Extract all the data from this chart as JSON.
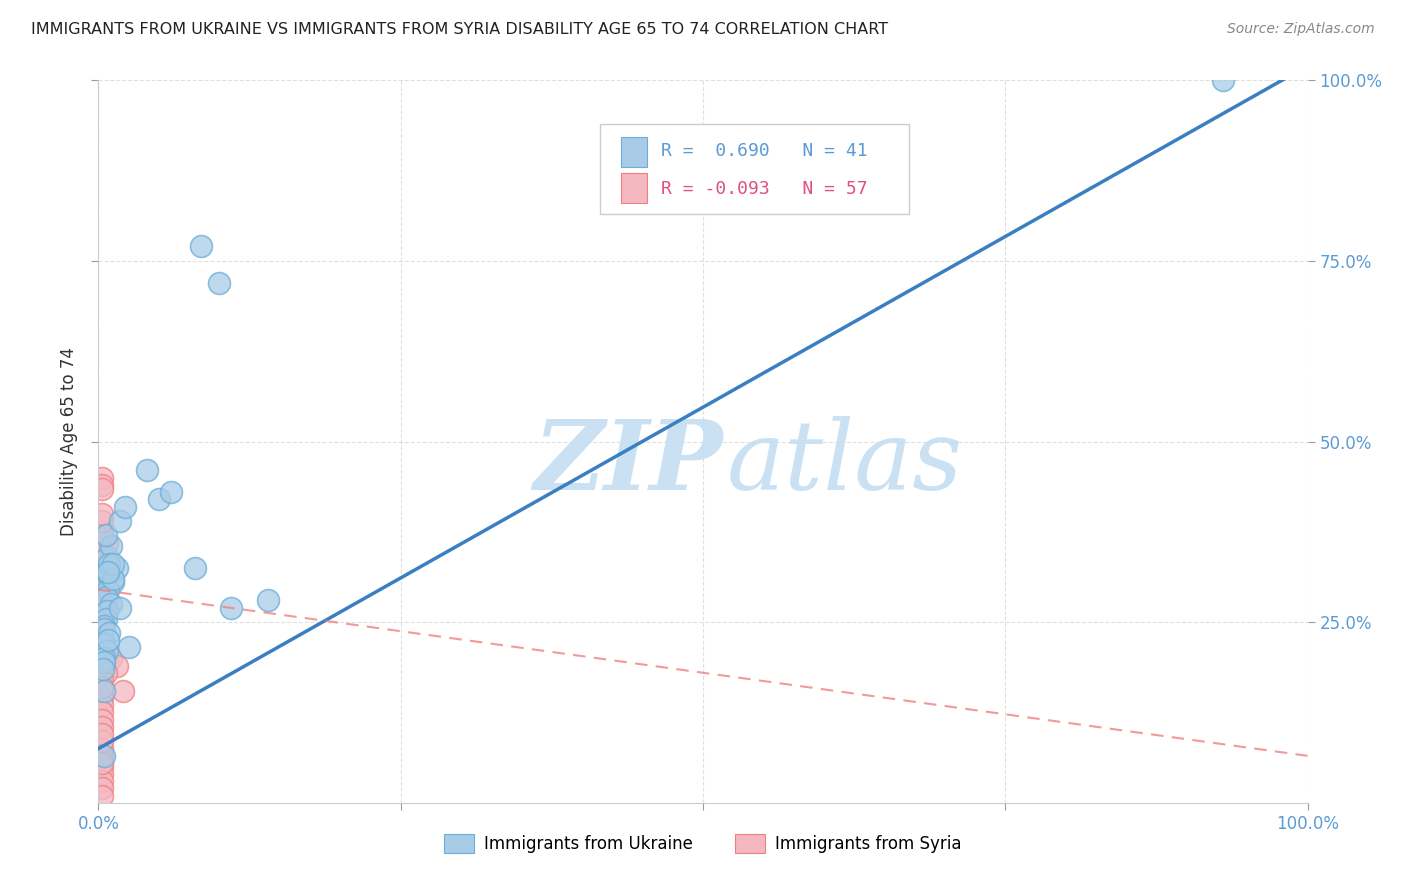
{
  "title": "IMMIGRANTS FROM UKRAINE VS IMMIGRANTS FROM SYRIA DISABILITY AGE 65 TO 74 CORRELATION CHART",
  "source": "Source: ZipAtlas.com",
  "ylabel": "Disability Age 65 to 74",
  "xlim": [
    0,
    1.0
  ],
  "ylim": [
    0,
    1.0
  ],
  "ukraine_color": "#a8cce8",
  "ukraine_edge": "#6baed6",
  "syria_color": "#f4b8c1",
  "syria_edge": "#f08080",
  "ukraine_R": 0.69,
  "ukraine_N": 41,
  "syria_R": -0.093,
  "syria_N": 57,
  "ukraine_line_color": "#3a7fc1",
  "syria_line_color": "#f08080",
  "ukraine_scatter_x": [
    0.005,
    0.007,
    0.008,
    0.012,
    0.015,
    0.007,
    0.01,
    0.006,
    0.009,
    0.008,
    0.018,
    0.022,
    0.05,
    0.06,
    0.006,
    0.01,
    0.007,
    0.006,
    0.012,
    0.005,
    0.005,
    0.009,
    0.085,
    0.1,
    0.005,
    0.007,
    0.005,
    0.008,
    0.005,
    0.004,
    0.012,
    0.018,
    0.025,
    0.11,
    0.14,
    0.005,
    0.93,
    0.008,
    0.04,
    0.08,
    0.005
  ],
  "ukraine_scatter_y": [
    0.31,
    0.32,
    0.315,
    0.305,
    0.325,
    0.34,
    0.355,
    0.37,
    0.33,
    0.295,
    0.39,
    0.41,
    0.42,
    0.43,
    0.285,
    0.275,
    0.265,
    0.255,
    0.31,
    0.245,
    0.24,
    0.235,
    0.77,
    0.72,
    0.22,
    0.21,
    0.2,
    0.225,
    0.195,
    0.185,
    0.33,
    0.27,
    0.215,
    0.27,
    0.28,
    0.155,
    1.0,
    0.32,
    0.46,
    0.325,
    0.065
  ],
  "syria_scatter_x": [
    0.003,
    0.004,
    0.003,
    0.004,
    0.003,
    0.006,
    0.003,
    0.003,
    0.004,
    0.003,
    0.007,
    0.003,
    0.003,
    0.003,
    0.006,
    0.003,
    0.003,
    0.003,
    0.004,
    0.003,
    0.003,
    0.003,
    0.003,
    0.006,
    0.01,
    0.003,
    0.015,
    0.006,
    0.003,
    0.02,
    0.003,
    0.003,
    0.003,
    0.003,
    0.003,
    0.003,
    0.003,
    0.003,
    0.003,
    0.003,
    0.003,
    0.003,
    0.003,
    0.003,
    0.003,
    0.003,
    0.003,
    0.003,
    0.003,
    0.003,
    0.003,
    0.003,
    0.003,
    0.003,
    0.003,
    0.003,
    0.003
  ],
  "syria_scatter_y": [
    0.285,
    0.3,
    0.31,
    0.32,
    0.265,
    0.275,
    0.28,
    0.33,
    0.34,
    0.35,
    0.36,
    0.37,
    0.24,
    0.23,
    0.295,
    0.25,
    0.28,
    0.26,
    0.27,
    0.32,
    0.31,
    0.3,
    0.22,
    0.21,
    0.2,
    0.205,
    0.19,
    0.18,
    0.17,
    0.155,
    0.39,
    0.4,
    0.45,
    0.44,
    0.435,
    0.325,
    0.315,
    0.305,
    0.295,
    0.285,
    0.275,
    0.145,
    0.135,
    0.125,
    0.115,
    0.16,
    0.105,
    0.065,
    0.075,
    0.085,
    0.095,
    0.05,
    0.04,
    0.03,
    0.02,
    0.01,
    0.055
  ],
  "watermark_zip": "ZIP",
  "watermark_atlas": "atlas",
  "background_color": "#ffffff",
  "grid_color": "#cccccc",
  "tick_color": "#5b9bd5",
  "ukr_line_x0": 0.0,
  "ukr_line_y0": 0.075,
  "ukr_line_x1": 1.0,
  "ukr_line_y1": 1.02,
  "syr_line_x0": 0.0,
  "syr_line_y0": 0.295,
  "syr_line_x1": 1.0,
  "syr_line_y1": 0.065
}
